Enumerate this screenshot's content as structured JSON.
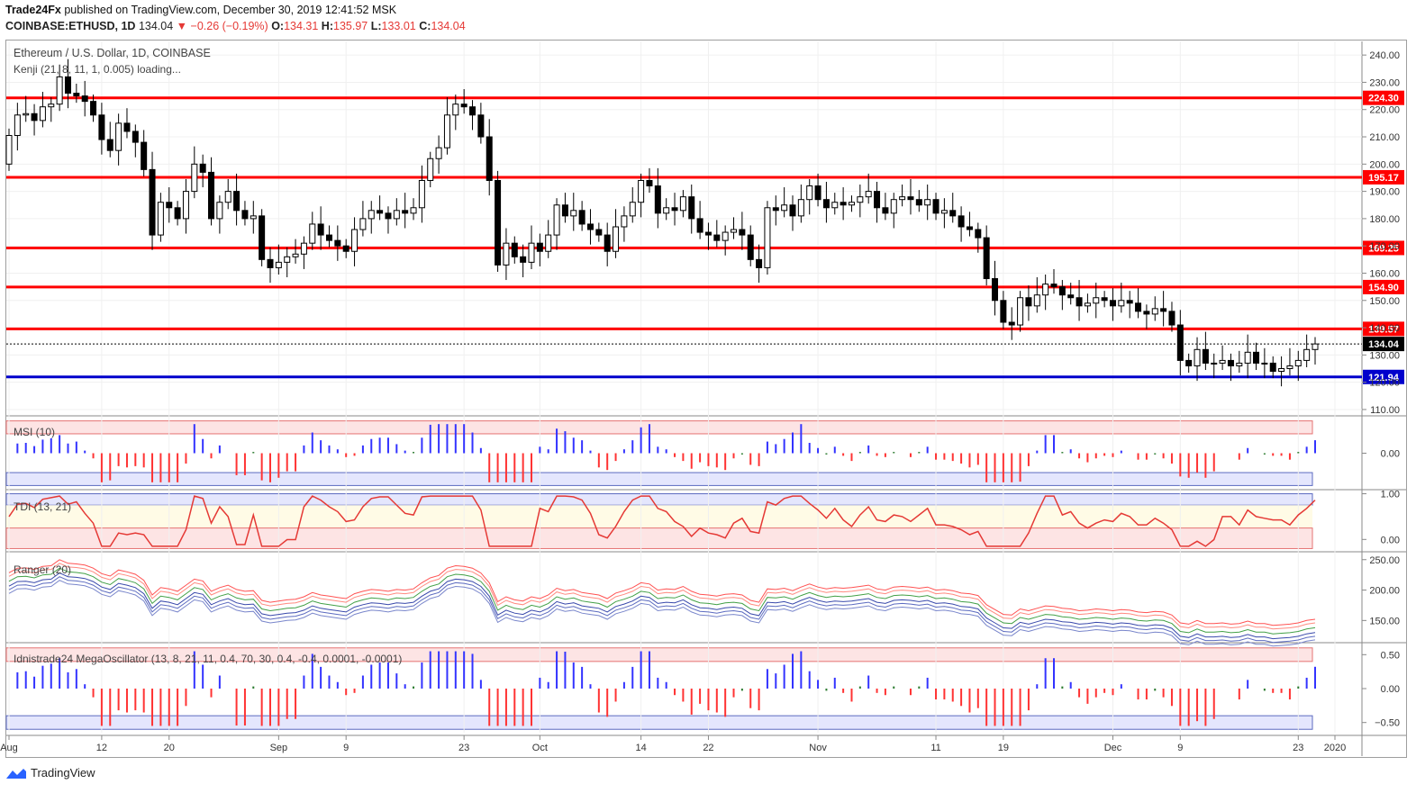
{
  "header": {
    "publisher": "Trade24Fx",
    "published_text": " published on TradingView.com, December 30, 2019 12:41:52 MSK",
    "symbol": "COINBASE:ETHUSD, 1D",
    "last": "134.04",
    "change": "−0.26 (−0.19%)",
    "o_label": "O:",
    "o": "134.31",
    "h_label": "H:",
    "h": "135.97",
    "l_label": "L:",
    "l": "133.01",
    "c_label": "C:",
    "c": "134.04"
  },
  "main_title": "Ethereum / U.S. Dollar, 1D, COINBASE",
  "indicator_loading": "Kenji (21, 8, 11, 1, 0.005) loading...",
  "panes": {
    "msi": "MSI (10)",
    "tdi": "TDI (13, 21)",
    "ranger": "Ranger (20)",
    "mega": "Idnistrade24 MegaOscillator (13, 8, 21, 11, 0.4, 70, 30, 0.4, -0.4, 0.0001, -0.0001)"
  },
  "footer_brand": "TradingView",
  "colors": {
    "up": "#ffffff",
    "down": "#000000",
    "level": "#ff0000",
    "support": "#0000cc",
    "osc_pos": "#3333ff",
    "osc_neg": "#ff3333",
    "osc_neutral": "#2e7d32"
  },
  "chart_data": [
    {
      "type": "candlestick",
      "title": "Ethereum / U.S. Dollar, 1D, COINBASE",
      "ylim": [
        108,
        245
      ],
      "y_ticks": [
        110,
        120,
        130,
        140,
        150,
        160,
        170,
        180,
        190,
        200,
        210,
        220,
        230,
        240
      ],
      "x_labels": [
        "Aug",
        "12",
        "20",
        "Sep",
        "9",
        "23",
        "Oct",
        "14",
        "22",
        "Nov",
        "11",
        "19",
        "Dec",
        "9",
        "23",
        "2020"
      ],
      "horizontal_levels": [
        {
          "value": 224.3,
          "label": "224.30",
          "color": "#ff0000"
        },
        {
          "value": 195.17,
          "label": "195.17",
          "color": "#ff0000"
        },
        {
          "value": 169.25,
          "label": "169.25",
          "color": "#ff0000"
        },
        {
          "value": 154.9,
          "label": "154.90",
          "color": "#ff0000"
        },
        {
          "value": 139.57,
          "label": "139.57",
          "color": "#ff0000"
        },
        {
          "value": 121.94,
          "label": "121.94",
          "color": "#0000cc"
        }
      ],
      "last_price": {
        "value": 134.04,
        "label": "134.04"
      },
      "closes": [
        210.5,
        218,
        218.5,
        216,
        221,
        222,
        232,
        226,
        225,
        223,
        218,
        209,
        205,
        215,
        212,
        208,
        198,
        174,
        186,
        184,
        180,
        190,
        200,
        197,
        180,
        186,
        190,
        183,
        180,
        181,
        165,
        162,
        164,
        166,
        167,
        171,
        178,
        174,
        172,
        170,
        168,
        176,
        180,
        183,
        182,
        180,
        183,
        182,
        184,
        194,
        202,
        206,
        218,
        222,
        221,
        218,
        210,
        194,
        163,
        171,
        166,
        164,
        171,
        168,
        174,
        185,
        181,
        183,
        178,
        176,
        174,
        168,
        177,
        181,
        186,
        194,
        192,
        182,
        184,
        183,
        188,
        180,
        175,
        174,
        172,
        175,
        176,
        174,
        165,
        162,
        184,
        183,
        185,
        181,
        187,
        192,
        187,
        184,
        186,
        185,
        186,
        188,
        190,
        184,
        182,
        187,
        188,
        187,
        185,
        187,
        182,
        183,
        181,
        177,
        176,
        173,
        158,
        150,
        142,
        141,
        151,
        148,
        152,
        156,
        155,
        152,
        151,
        148,
        149,
        151,
        150,
        148,
        150,
        149,
        146,
        145,
        147,
        146,
        141,
        128,
        126,
        132,
        127,
        127,
        128,
        126,
        127,
        131,
        127,
        127,
        124,
        125,
        126,
        128,
        132,
        134.04
      ],
      "annotations": [
        "Kenji (21, 8, 11, 1, 0.005) loading..."
      ]
    },
    {
      "type": "bar",
      "title": "MSI (10)",
      "ylim": [
        -1.1,
        1.1
      ],
      "y_ticks": [
        "0.00"
      ]
    },
    {
      "type": "line",
      "title": "TDI (13, 21)",
      "ylim": [
        -0.25,
        1.05
      ],
      "y_ticks": [
        "0.00",
        "1.00"
      ]
    },
    {
      "type": "line",
      "title": "Ranger (20)",
      "ylim": [
        115,
        260
      ],
      "y_ticks": [
        "150.00",
        "200.00",
        "250.00"
      ]
    },
    {
      "type": "bar",
      "title": "Idnistrade24 MegaOscillator (13, 8, 21, 11, 0.4, 70, 30, 0.4, -0.4, 0.0001, -0.0001)",
      "ylim": [
        -0.65,
        0.65
      ],
      "y_ticks": [
        "−0.50",
        "0.00",
        "0.50"
      ]
    }
  ]
}
